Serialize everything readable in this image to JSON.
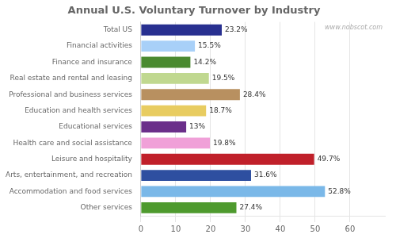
{
  "chart_data": {
    "type": "bar",
    "orientation": "horizontal",
    "title": "Annual U.S. Voluntary Turnover by Industry",
    "annotations": [
      "www.nobscot.com"
    ],
    "categories": [
      "Other services",
      "Accommodation and food services",
      "Arts, entertainment, and recreation",
      "Leisure and hospitality",
      "Health care and social assistance",
      "Educational services",
      "Education and health services",
      "Professional and business services",
      "Real estate and rental and leasing",
      "Finance and insurance",
      "Financial activities",
      "Total US"
    ],
    "values": [
      27.4,
      52.8,
      31.6,
      49.7,
      19.8,
      13.0,
      18.7,
      28.4,
      19.5,
      14.2,
      15.5,
      23.2
    ],
    "value_labels": [
      "27.4%",
      "52.8%",
      "31.6%",
      "49.7%",
      "19.8%",
      "13%",
      "18.7%",
      "28.4%",
      "19.5%",
      "14.2%",
      "15.5%",
      "23.2%"
    ],
    "data_labels": true,
    "colors": [
      "#4e9a2e",
      "#7ab8e8",
      "#2e4fa0",
      "#c0202a",
      "#f0a0d8",
      "#6b2f8a",
      "#e8cc60",
      "#b89060",
      "#c0d890",
      "#4a8a30",
      "#a8d0f8",
      "#283090"
    ],
    "xlim": [
      0,
      70
    ],
    "xticks": [
      0,
      10,
      20,
      30,
      40,
      50,
      60
    ],
    "grid": true
  }
}
